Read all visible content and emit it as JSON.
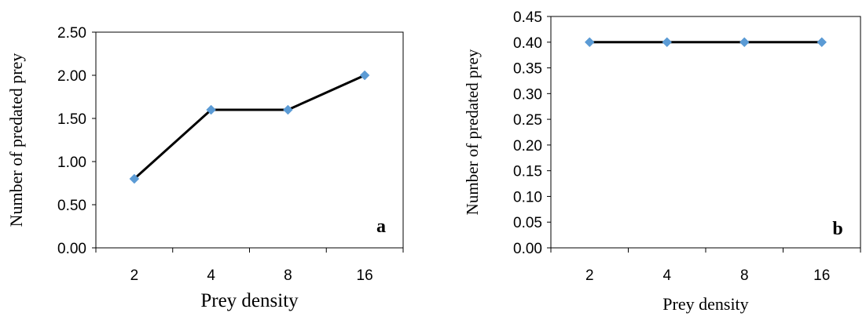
{
  "chart_data": [
    {
      "type": "line",
      "panel_label": "a",
      "categories": [
        "2",
        "4",
        "8",
        "16"
      ],
      "series": [
        {
          "values": [
            0.8,
            1.6,
            1.6,
            2.0
          ],
          "color": "#000000",
          "marker_color": "#5b9bd5"
        }
      ],
      "xlabel": "Prey density",
      "ylabel": "Number of predated prey",
      "ylim": [
        0,
        2.5
      ],
      "yticks": [
        "0.00",
        "0.50",
        "1.00",
        "1.50",
        "2.00",
        "2.50"
      ],
      "grid": false,
      "legend": "none"
    },
    {
      "type": "line",
      "panel_label": "b",
      "categories": [
        "2",
        "4",
        "8",
        "16"
      ],
      "series": [
        {
          "values": [
            0.4,
            0.4,
            0.4,
            0.4
          ],
          "color": "#000000",
          "marker_color": "#5b9bd5"
        }
      ],
      "xlabel": "Prey density",
      "ylabel": "Number of predated prey",
      "ylim": [
        0,
        0.45
      ],
      "yticks": [
        "0.00",
        "0.05",
        "0.10",
        "0.15",
        "0.20",
        "0.25",
        "0.30",
        "0.35",
        "0.40",
        "0.45"
      ],
      "grid": false,
      "legend": "none"
    }
  ]
}
